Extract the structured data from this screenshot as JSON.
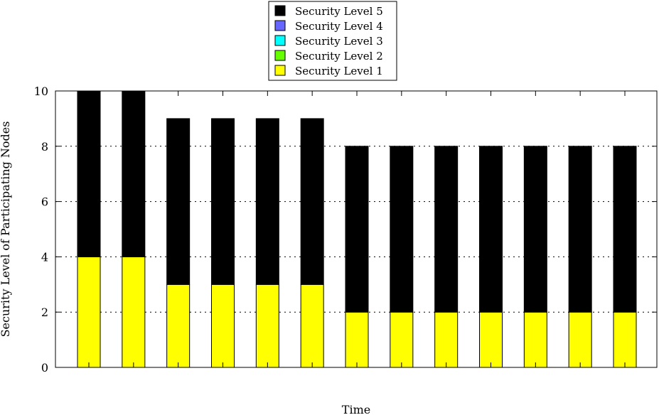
{
  "chart_data": {
    "type": "bar",
    "stacked": true,
    "title": "",
    "xlabel": "Time",
    "ylabel": "Security Level of Participating Nodes",
    "ylim": [
      0,
      10
    ],
    "yticks": [
      0,
      2,
      4,
      6,
      8,
      10
    ],
    "grid": true,
    "legend_position": "top-center",
    "categories": [
      "",
      "",
      "",
      "",
      "",
      "",
      "",
      "",
      "",
      "",
      "",
      "",
      ""
    ],
    "series": [
      {
        "name": "Security Level 1",
        "color": "#ffff00",
        "values": [
          4,
          4,
          3,
          3,
          3,
          3,
          2,
          2,
          2,
          2,
          2,
          2,
          2
        ]
      },
      {
        "name": "Security Level 2",
        "color": "#66ff00",
        "values": [
          0,
          0,
          0,
          0,
          0,
          0,
          0,
          0,
          0,
          0,
          0,
          0,
          0
        ]
      },
      {
        "name": "Security Level 3",
        "color": "#00ffff",
        "values": [
          0,
          0,
          0,
          0,
          0,
          0,
          0,
          0,
          0,
          0,
          0,
          0,
          0
        ]
      },
      {
        "name": "Security Level 4",
        "color": "#6666ff",
        "values": [
          0,
          0,
          0,
          0,
          0,
          0,
          0,
          0,
          0,
          0,
          0,
          0,
          0
        ]
      },
      {
        "name": "Security Level 5",
        "color": "#000000",
        "values": [
          6,
          6,
          6,
          6,
          6,
          6,
          6,
          6,
          6,
          6,
          6,
          6,
          6
        ]
      }
    ],
    "legend_order": [
      "Security Level 5",
      "Security Level 4",
      "Security Level 3",
      "Security Level 2",
      "Security Level 1"
    ]
  }
}
